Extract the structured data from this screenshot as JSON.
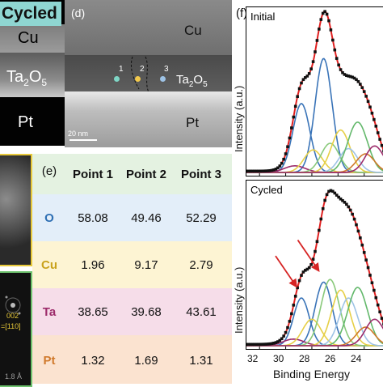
{
  "left_strip": {
    "tag": "Cycled",
    "layer_cu": "Cu",
    "layer_ta_main": "Ta",
    "layer_ta_sub1": "2",
    "layer_ta_o": "O",
    "layer_ta_sub2": "5",
    "layer_pt": "Pt"
  },
  "fft_inset": {
    "miller": "002",
    "zone": "=[110]",
    "spacing": "1.8 Å"
  },
  "panel_d": {
    "label": "(d)",
    "layer_cu": "Cu",
    "layer_ta_main": "Ta",
    "layer_ta_sub1": "2",
    "layer_ta_o": "O",
    "layer_ta_sub2": "5",
    "layer_pt": "Pt",
    "scale_bar": "20 nm",
    "points": [
      "1",
      "2",
      "3"
    ],
    "point_colors": [
      "#7fd6c6",
      "#f2c94c",
      "#9ec3e6"
    ]
  },
  "panel_e": {
    "label": "(e)",
    "headers": [
      "Point 1",
      "Point 2",
      "Point 3"
    ],
    "rows": [
      {
        "element": "O",
        "values": [
          "58.08",
          "49.46",
          "52.29"
        ],
        "band_color": "#e3eef9",
        "element_color": "#2e6fb3"
      },
      {
        "element": "Cu",
        "values": [
          "1.96",
          "9.17",
          "2.79"
        ],
        "band_color": "#fdf4d3",
        "element_color": "#c9a21c"
      },
      {
        "element": "Ta",
        "values": [
          "38.65",
          "39.68",
          "43.61"
        ],
        "band_color": "#f6dde9",
        "element_color": "#9c2a6a"
      },
      {
        "element": "Pt",
        "values": [
          "1.32",
          "1.69",
          "1.31"
        ],
        "band_color": "#fbe3d0",
        "element_color": "#d07a2c"
      }
    ],
    "header_band_color": "#e4f2e1"
  },
  "panel_f": {
    "label": "(f)",
    "ylabel": "Intensity (a.u.)",
    "xlabel": "Binding Energy",
    "x_ticks": [
      "32",
      "30",
      "28",
      "26",
      "24"
    ]
  },
  "chart_data": [
    {
      "type": "line",
      "title": "Initial",
      "xlabel": "Binding Energy",
      "ylabel": "Intensity (a.u.)",
      "xlim": [
        33,
        22.5
      ],
      "ylim": [
        0,
        1.1
      ],
      "x_ticks": [
        32,
        30,
        28,
        26,
        24
      ],
      "y_ticks_visible": false,
      "data_marker_color": "#111111",
      "envelope_color": "#e02020",
      "components": [
        {
          "center": 28.8,
          "height": 0.52,
          "width": 0.65,
          "color": "#3a74b8"
        },
        {
          "center": 27.1,
          "height": 0.86,
          "width": 0.65,
          "color": "#3a74b8"
        },
        {
          "center": 29.3,
          "height": 0.05,
          "width": 0.8,
          "color": "#9c2a6a"
        },
        {
          "center": 27.9,
          "height": 0.17,
          "width": 0.7,
          "color": "#e6cf46"
        },
        {
          "center": 26.6,
          "height": 0.22,
          "width": 0.7,
          "color": "#89c97a"
        },
        {
          "center": 25.8,
          "height": 0.32,
          "width": 0.7,
          "color": "#e6cf46"
        },
        {
          "center": 25.2,
          "height": 0.18,
          "width": 0.7,
          "color": "#9ec3e6"
        },
        {
          "center": 24.5,
          "height": 0.38,
          "width": 0.75,
          "color": "#63b86b"
        },
        {
          "center": 23.9,
          "height": 0.14,
          "width": 0.7,
          "color": "#d07a2c"
        },
        {
          "center": 23.2,
          "height": 0.2,
          "width": 0.7,
          "color": "#9c2a6a"
        }
      ]
    },
    {
      "type": "line",
      "title": "Cycled",
      "xlabel": "Binding Energy",
      "ylabel": "Intensity (a.u.)",
      "xlim": [
        33,
        22.5
      ],
      "ylim": [
        0,
        1.1
      ],
      "x_ticks": [
        32,
        30,
        28,
        26,
        24
      ],
      "y_ticks_visible": false,
      "data_marker_color": "#111111",
      "envelope_color": "#e02020",
      "arrow_color": "#d62424",
      "components": [
        {
          "center": 28.8,
          "height": 0.36,
          "width": 0.6,
          "color": "#3a74b8"
        },
        {
          "center": 27.1,
          "height": 0.48,
          "width": 0.65,
          "color": "#3a74b8"
        },
        {
          "center": 29.4,
          "height": 0.05,
          "width": 0.8,
          "color": "#9c2a6a"
        },
        {
          "center": 28.0,
          "height": 0.2,
          "width": 0.7,
          "color": "#e6cf46"
        },
        {
          "center": 26.6,
          "height": 0.5,
          "width": 0.7,
          "color": "#89c97a"
        },
        {
          "center": 25.8,
          "height": 0.42,
          "width": 0.7,
          "color": "#e6cf46"
        },
        {
          "center": 25.2,
          "height": 0.36,
          "width": 0.7,
          "color": "#9ec3e6"
        },
        {
          "center": 24.5,
          "height": 0.44,
          "width": 0.75,
          "color": "#63b86b"
        },
        {
          "center": 23.9,
          "height": 0.14,
          "width": 0.7,
          "color": "#d07a2c"
        },
        {
          "center": 23.2,
          "height": 0.2,
          "width": 0.7,
          "color": "#9c2a6a"
        }
      ]
    }
  ]
}
